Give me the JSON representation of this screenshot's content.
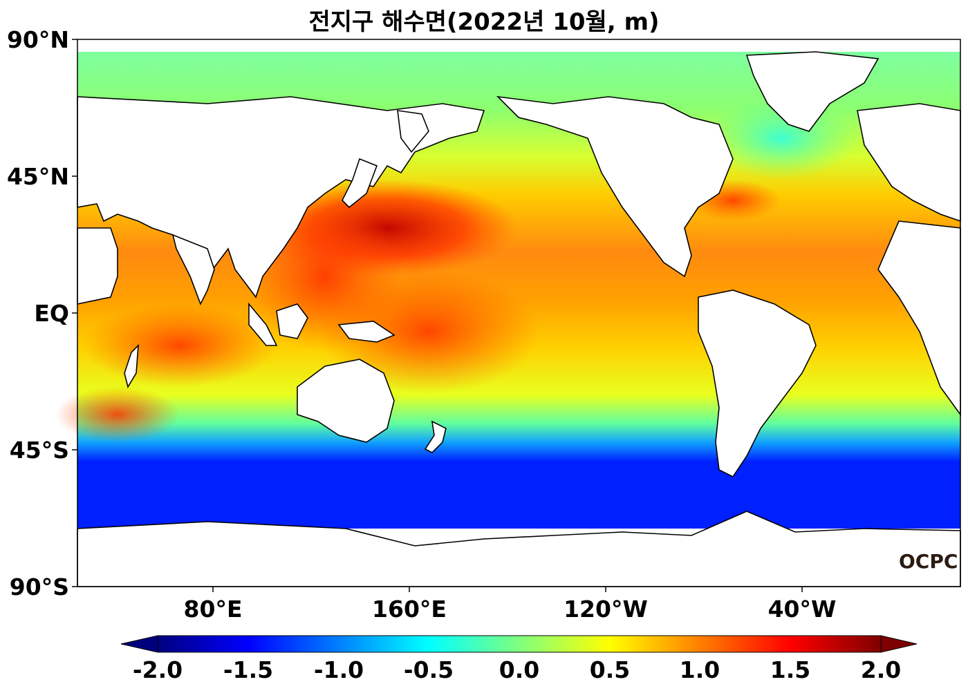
{
  "title": "전지구 해수면(2022년 10월, m)",
  "lat_labels": [
    "90°N",
    "45°N",
    "EQ",
    "45°S",
    "90°S"
  ],
  "lon_labels": [
    "80°E",
    "160°E",
    "120°W",
    "40°W"
  ],
  "colorbar": {
    "ticks": [
      "-2.0",
      "-1.5",
      "-1.0",
      "-0.5",
      "0.0",
      "0.5",
      "1.0",
      "1.5",
      "2.0"
    ],
    "min": -2.0,
    "max": 2.0,
    "colormap": [
      "#00007f",
      "#0000ff",
      "#007fff",
      "#00ffff",
      "#7fff7f",
      "#ffff00",
      "#ff7f00",
      "#ff0000",
      "#7f0000"
    ],
    "extend": "both"
  },
  "logo": "OCPC"
}
